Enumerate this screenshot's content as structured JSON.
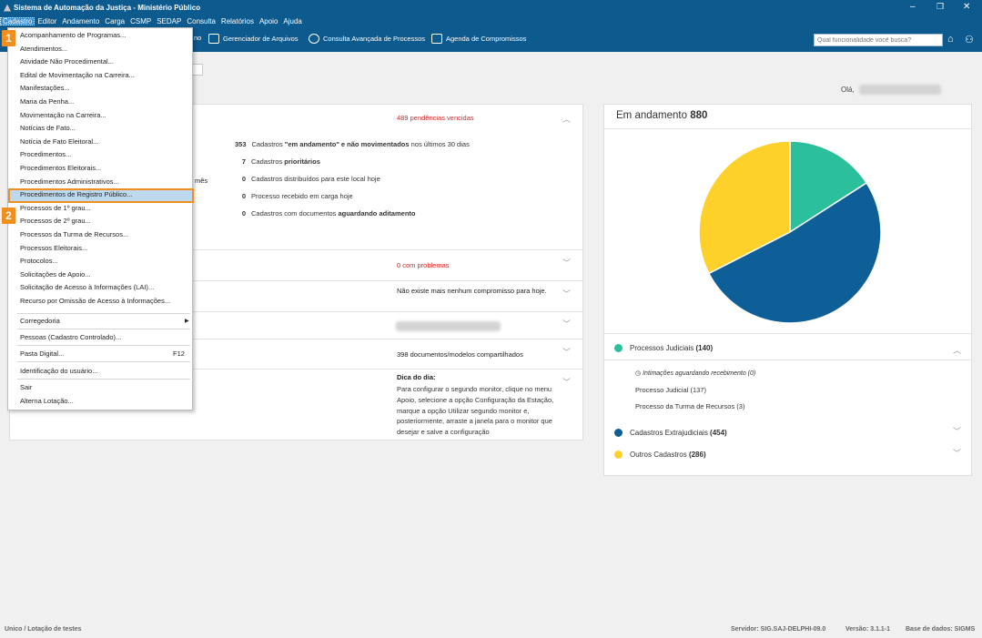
{
  "window": {
    "title": "Sistema de Automação da Justiça - Ministério Público",
    "controls": {
      "minimize": "–",
      "restore": "❐",
      "close": "✕"
    }
  },
  "menubar": [
    "Cadastro",
    "Editor",
    "Andamento",
    "Carga",
    "CSMP",
    "SEDAP",
    "Consulta",
    "Relatórios",
    "Apoio",
    "Ajuda"
  ],
  "toolbar": {
    "partial": "no",
    "file_manager": "Gerenciador de Arquivos",
    "advanced_search": "Consulta Avançada de Processos",
    "schedule": "Agenda de Compromissos",
    "search_placeholder": "Qual funcionalidade você busca?"
  },
  "greeting": "Olá,",
  "cadastro_menu": {
    "items": [
      "Acompanhamento de Programas...",
      "Atendimentos...",
      "Atividade Não Procedimental...",
      "Edital de Movimentação na Carreira...",
      "Manifestações...",
      "Maria da Penha...",
      "Movimentação na Carreira...",
      "Notícias de Fato...",
      "Notícia de Fato Eleitoral...",
      "Procedimentos...",
      "Procedimentos Eleitorais...",
      "Procedimentos Administrativos...",
      "Procedimentos de Registro Público...",
      "Processos de 1º grau...",
      "Processos de 2º grau...",
      "Processos da Turma de Recursos...",
      "Processos Eleitorais...",
      "Protocolos...",
      "Solicitações de Apoio...",
      "Solicitação de Acesso à Informações (LAI)...",
      "Recurso por Omissão de Acesso à Informações..."
    ],
    "corregedoria": "Corregedoria",
    "pessoas": "Pessoas (Cadastro Controlado)...",
    "pasta": "Pasta Digital...",
    "pasta_shortcut": "F12",
    "identificacao": "Identificação do usuário...",
    "sair": "Sair",
    "alterna": "Alterna Lotação..."
  },
  "badges": {
    "step1": "1",
    "step2": "2"
  },
  "left": {
    "pendencias": "489 pendências vencidas",
    "partial_mes": "mês",
    "stats": [
      {
        "n": "353",
        "pre": "Cadastros ",
        "bold": "\"em andamento\" e não movimentados",
        "post": " nos últimos 30 dias"
      },
      {
        "n": "7",
        "pre": "Cadastros ",
        "bold": "prioritários",
        "post": ""
      },
      {
        "n": "0",
        "pre": "Cadastros distribuídos para este local hoje",
        "bold": "",
        "post": ""
      },
      {
        "n": "0",
        "pre": "Processo recebido em carga hoje",
        "bold": "",
        "post": ""
      },
      {
        "n": "0",
        "pre": "Cadastros com documentos ",
        "bold": "aguardando aditamento",
        "post": ""
      }
    ],
    "problemas": "0 com problemas",
    "compromisso": "Não existe mais nenhum compromisso para hoje.",
    "documentos": "398 documentos/modelos compartilhados",
    "dica_title": "Dica do dia:",
    "dica_text": "Para configurar o segundo monitor, clique no menu Apoio, selecione a opção Configuração da Estação, marque a opção Utilizar segundo monitor e, posteriormente, arraste a janela para o monitor que desejar e salve a configuração"
  },
  "right": {
    "title": "Em andamento",
    "total": "880",
    "legend": [
      {
        "label": "Processos Judiciais",
        "count": "(140)",
        "color": "#2bbf9b"
      },
      {
        "label": "Cadastros Extrajudiciais",
        "count": "(454)",
        "color": "#0e5f98"
      },
      {
        "label": "Outros Cadastros",
        "count": "(286)",
        "color": "#fdd12a"
      }
    ],
    "sub": [
      "Intimações aguardando recebimento (0)",
      "Processo Judicial (137)",
      "Processo da Turma de Recursos (3)"
    ]
  },
  "chart_data": {
    "type": "pie",
    "title": "Em andamento 880",
    "categories": [
      "Processos Judiciais",
      "Cadastros Extrajudiciais",
      "Outros Cadastros"
    ],
    "values": [
      140,
      454,
      286
    ],
    "colors": [
      "#2bbf9b",
      "#0e5f98",
      "#fdd12a"
    ]
  },
  "status": {
    "left": "Unico / Lotação de testes",
    "server": "Servidor: SIG.SAJ-DELPHI-09.0",
    "version": "Versão: 3.1.1-1",
    "db": "Base de dados: SIGMS"
  }
}
